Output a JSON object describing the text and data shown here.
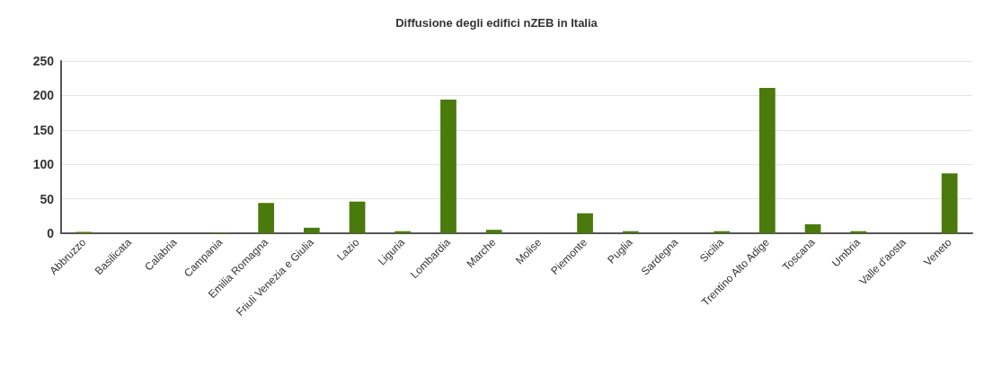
{
  "chart_data": {
    "type": "bar",
    "title": "Diffusione degli edifici nZEB in Italia",
    "categories": [
      "Abbruzzo",
      "Basilicata",
      "Calabria",
      "Campania",
      "Emilia Romagna",
      "Friuli Venezia e Giulia",
      "Lazio",
      "Liguria",
      "Lombardia",
      "Marche",
      "Molise",
      "Piemonte",
      "Puglia",
      "Sardegna",
      "Sicilia",
      "Trentino Alto Adige",
      "Toscana",
      "Umbria",
      "Valle d'aosta",
      "Veneto"
    ],
    "values": [
      2,
      0,
      0,
      1,
      44,
      8,
      46,
      3,
      194,
      5,
      0,
      29,
      3,
      0,
      3,
      211,
      13,
      3,
      0,
      87
    ],
    "color": "#4a7a0c",
    "ylim": [
      0,
      250
    ],
    "yticks": [
      0,
      50,
      100,
      150,
      200,
      250
    ],
    "grid": "y"
  }
}
